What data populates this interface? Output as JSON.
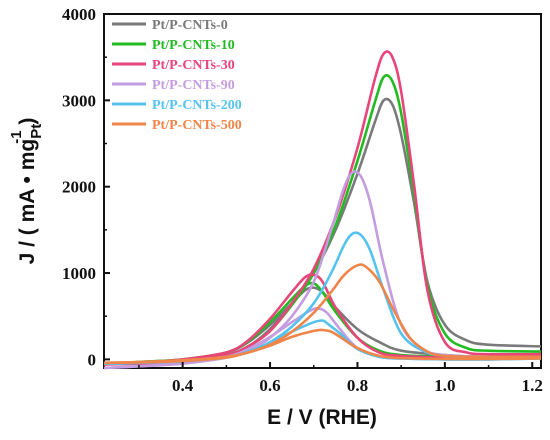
{
  "chart_data": {
    "type": "line",
    "xlabel": "E / V (RHE)",
    "ylabel_prefix": "J / ( mA • mg",
    "ylabel_sup": "-1",
    "ylabel_sub": "Pt",
    "ylabel_suffix": " )",
    "xlim": [
      0.22,
      1.22
    ],
    "ylim": [
      -100,
      4000
    ],
    "x_ticks": [
      0.4,
      0.6,
      0.8,
      1.0,
      1.2
    ],
    "x_tick_labels": [
      "0.4",
      "0.6",
      "0.8",
      "1.0",
      "1.2"
    ],
    "y_ticks": [
      0,
      1000,
      2000,
      3000,
      4000
    ],
    "y_tick_labels": [
      "0",
      "1000",
      "2000",
      "3000",
      "4000"
    ],
    "grid": false,
    "legend_position": "top-left",
    "series": [
      {
        "name": "Pt/P-CNTs-0",
        "color": "#7a7a7a",
        "forward": [
          [
            0.22,
            -50
          ],
          [
            0.3,
            -40
          ],
          [
            0.4,
            -20
          ],
          [
            0.5,
            50
          ],
          [
            0.55,
            150
          ],
          [
            0.6,
            350
          ],
          [
            0.65,
            650
          ],
          [
            0.7,
            1000
          ],
          [
            0.75,
            1500
          ],
          [
            0.8,
            2150
          ],
          [
            0.84,
            2750
          ],
          [
            0.86,
            3000
          ],
          [
            0.88,
            2950
          ],
          [
            0.9,
            2600
          ],
          [
            0.93,
            1800
          ],
          [
            0.96,
            900
          ],
          [
            1.0,
            400
          ],
          [
            1.05,
            220
          ],
          [
            1.1,
            170
          ],
          [
            1.22,
            150
          ]
        ],
        "backward": [
          [
            1.22,
            40
          ],
          [
            1.1,
            30
          ],
          [
            1.0,
            50
          ],
          [
            0.9,
            100
          ],
          [
            0.85,
            200
          ],
          [
            0.8,
            350
          ],
          [
            0.75,
            600
          ],
          [
            0.72,
            780
          ],
          [
            0.7,
            830
          ],
          [
            0.68,
            800
          ],
          [
            0.65,
            650
          ],
          [
            0.6,
            400
          ],
          [
            0.55,
            200
          ],
          [
            0.5,
            80
          ],
          [
            0.4,
            0
          ],
          [
            0.3,
            -30
          ],
          [
            0.22,
            -50
          ]
        ]
      },
      {
        "name": "Pt/P-CNTs-10",
        "color": "#22bb22",
        "forward": [
          [
            0.22,
            -50
          ],
          [
            0.3,
            -40
          ],
          [
            0.4,
            -20
          ],
          [
            0.5,
            50
          ],
          [
            0.55,
            150
          ],
          [
            0.6,
            330
          ],
          [
            0.65,
            630
          ],
          [
            0.7,
            1000
          ],
          [
            0.75,
            1550
          ],
          [
            0.8,
            2300
          ],
          [
            0.84,
            2980
          ],
          [
            0.86,
            3270
          ],
          [
            0.88,
            3220
          ],
          [
            0.9,
            2850
          ],
          [
            0.93,
            1900
          ],
          [
            0.96,
            850
          ],
          [
            1.0,
            300
          ],
          [
            1.05,
            130
          ],
          [
            1.1,
            100
          ],
          [
            1.22,
            90
          ]
        ],
        "backward": [
          [
            1.22,
            30
          ],
          [
            1.1,
            20
          ],
          [
            1.0,
            30
          ],
          [
            0.9,
            50
          ],
          [
            0.85,
            100
          ],
          [
            0.8,
            250
          ],
          [
            0.75,
            550
          ],
          [
            0.72,
            780
          ],
          [
            0.7,
            880
          ],
          [
            0.68,
            850
          ],
          [
            0.65,
            700
          ],
          [
            0.6,
            430
          ],
          [
            0.55,
            210
          ],
          [
            0.5,
            80
          ],
          [
            0.4,
            0
          ],
          [
            0.3,
            -30
          ],
          [
            0.22,
            -50
          ]
        ]
      },
      {
        "name": "Pt/P-CNTs-30",
        "color": "#e8457a",
        "forward": [
          [
            0.22,
            -60
          ],
          [
            0.3,
            -50
          ],
          [
            0.4,
            -30
          ],
          [
            0.5,
            50
          ],
          [
            0.55,
            150
          ],
          [
            0.6,
            330
          ],
          [
            0.65,
            650
          ],
          [
            0.7,
            1050
          ],
          [
            0.75,
            1650
          ],
          [
            0.8,
            2450
          ],
          [
            0.84,
            3250
          ],
          [
            0.86,
            3540
          ],
          [
            0.88,
            3500
          ],
          [
            0.9,
            3100
          ],
          [
            0.93,
            2000
          ],
          [
            0.96,
            800
          ],
          [
            1.0,
            200
          ],
          [
            1.05,
            80
          ],
          [
            1.1,
            60
          ],
          [
            1.22,
            60
          ]
        ],
        "backward": [
          [
            1.22,
            20
          ],
          [
            1.1,
            10
          ],
          [
            1.0,
            20
          ],
          [
            0.9,
            40
          ],
          [
            0.85,
            80
          ],
          [
            0.8,
            250
          ],
          [
            0.75,
            600
          ],
          [
            0.72,
            900
          ],
          [
            0.7,
            980
          ],
          [
            0.68,
            950
          ],
          [
            0.65,
            780
          ],
          [
            0.6,
            470
          ],
          [
            0.55,
            220
          ],
          [
            0.5,
            80
          ],
          [
            0.4,
            0
          ],
          [
            0.3,
            -40
          ],
          [
            0.22,
            -60
          ]
        ]
      },
      {
        "name": "Pt/P-CNTs-90",
        "color": "#c49ce0",
        "forward": [
          [
            0.22,
            -100
          ],
          [
            0.3,
            -80
          ],
          [
            0.4,
            -50
          ],
          [
            0.5,
            20
          ],
          [
            0.55,
            100
          ],
          [
            0.6,
            250
          ],
          [
            0.65,
            500
          ],
          [
            0.7,
            900
          ],
          [
            0.74,
            1500
          ],
          [
            0.77,
            2000
          ],
          [
            0.79,
            2170
          ],
          [
            0.81,
            2100
          ],
          [
            0.83,
            1800
          ],
          [
            0.86,
            1100
          ],
          [
            0.9,
            400
          ],
          [
            0.95,
            120
          ],
          [
            1.0,
            50
          ],
          [
            1.1,
            30
          ],
          [
            1.22,
            30
          ]
        ],
        "backward": [
          [
            1.22,
            10
          ],
          [
            1.1,
            0
          ],
          [
            1.0,
            0
          ],
          [
            0.9,
            10
          ],
          [
            0.85,
            30
          ],
          [
            0.8,
            130
          ],
          [
            0.76,
            350
          ],
          [
            0.73,
            540
          ],
          [
            0.71,
            590
          ],
          [
            0.69,
            560
          ],
          [
            0.65,
            430
          ],
          [
            0.6,
            260
          ],
          [
            0.55,
            120
          ],
          [
            0.5,
            30
          ],
          [
            0.4,
            -40
          ],
          [
            0.3,
            -80
          ],
          [
            0.22,
            -100
          ]
        ]
      },
      {
        "name": "Pt/P-CNTs-200",
        "color": "#55c3ee",
        "forward": [
          [
            0.22,
            -50
          ],
          [
            0.3,
            -40
          ],
          [
            0.4,
            -20
          ],
          [
            0.5,
            30
          ],
          [
            0.55,
            90
          ],
          [
            0.6,
            200
          ],
          [
            0.65,
            380
          ],
          [
            0.7,
            650
          ],
          [
            0.74,
            1000
          ],
          [
            0.77,
            1330
          ],
          [
            0.79,
            1460
          ],
          [
            0.81,
            1430
          ],
          [
            0.83,
            1250
          ],
          [
            0.86,
            800
          ],
          [
            0.9,
            300
          ],
          [
            0.95,
            100
          ],
          [
            1.0,
            40
          ],
          [
            1.1,
            30
          ],
          [
            1.22,
            30
          ]
        ],
        "backward": [
          [
            1.22,
            10
          ],
          [
            1.1,
            0
          ],
          [
            1.0,
            0
          ],
          [
            0.9,
            10
          ],
          [
            0.85,
            30
          ],
          [
            0.8,
            120
          ],
          [
            0.76,
            300
          ],
          [
            0.73,
            420
          ],
          [
            0.72,
            450
          ],
          [
            0.7,
            430
          ],
          [
            0.65,
            320
          ],
          [
            0.6,
            190
          ],
          [
            0.55,
            90
          ],
          [
            0.5,
            20
          ],
          [
            0.4,
            -20
          ],
          [
            0.3,
            -40
          ],
          [
            0.22,
            -50
          ]
        ]
      },
      {
        "name": "Pt/P-CNTs-500",
        "color": "#f0854a",
        "forward": [
          [
            0.22,
            -40
          ],
          [
            0.3,
            -30
          ],
          [
            0.4,
            -10
          ],
          [
            0.5,
            30
          ],
          [
            0.55,
            80
          ],
          [
            0.6,
            170
          ],
          [
            0.65,
            320
          ],
          [
            0.7,
            540
          ],
          [
            0.74,
            780
          ],
          [
            0.77,
            980
          ],
          [
            0.8,
            1090
          ],
          [
            0.82,
            1070
          ],
          [
            0.85,
            900
          ],
          [
            0.88,
            600
          ],
          [
            0.92,
            250
          ],
          [
            0.96,
            90
          ],
          [
            1.0,
            40
          ],
          [
            1.1,
            30
          ],
          [
            1.22,
            30
          ]
        ],
        "backward": [
          [
            1.22,
            10
          ],
          [
            1.1,
            5
          ],
          [
            1.0,
            5
          ],
          [
            0.9,
            15
          ],
          [
            0.85,
            40
          ],
          [
            0.8,
            130
          ],
          [
            0.76,
            260
          ],
          [
            0.74,
            320
          ],
          [
            0.72,
            340
          ],
          [
            0.7,
            330
          ],
          [
            0.65,
            260
          ],
          [
            0.6,
            160
          ],
          [
            0.55,
            80
          ],
          [
            0.5,
            20
          ],
          [
            0.4,
            -20
          ],
          [
            0.3,
            -35
          ],
          [
            0.22,
            -40
          ]
        ]
      }
    ]
  }
}
